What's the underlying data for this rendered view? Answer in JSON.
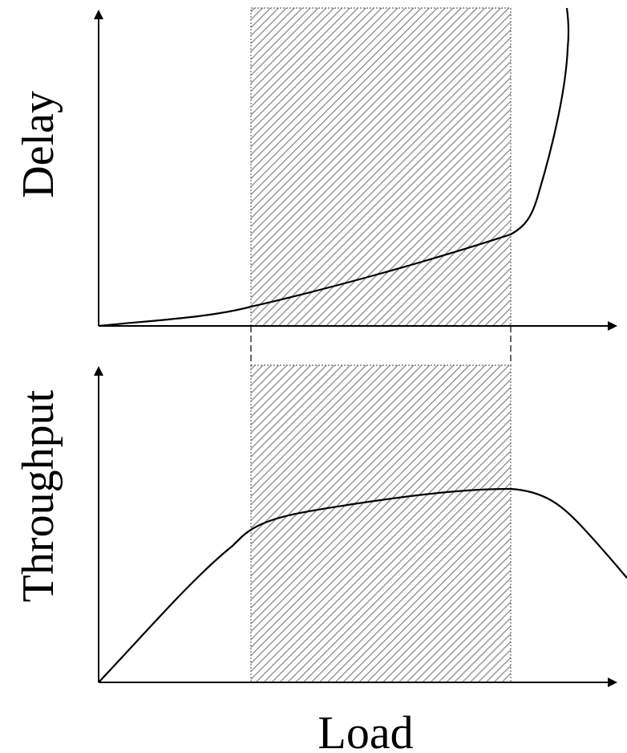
{
  "diagram": {
    "top_panel": {
      "ylabel": "Delay"
    },
    "bottom_panel": {
      "ylabel": "Throughput"
    },
    "xlabel": "Load",
    "colors": {
      "line": "#000000",
      "hatch": "#8a8a8a",
      "region_border": "#666666",
      "background": "#ffffff"
    }
  }
}
